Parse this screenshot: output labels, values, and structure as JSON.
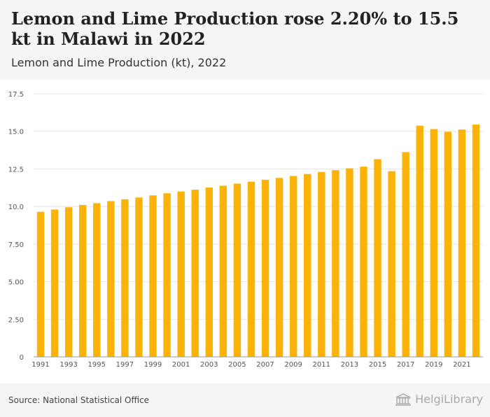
{
  "header": {
    "title": "Lemon and Lime Production rose 2.20% to 15.5 kt in Malawi in 2022",
    "subtitle": "Lemon and Lime Production (kt), 2022"
  },
  "footer": {
    "source": "Source: National Statistical Office",
    "brand": "HelgiLibrary"
  },
  "chart_data": {
    "type": "bar",
    "title": "Lemon and Lime Production (kt), 2022",
    "xlabel": "",
    "ylabel": "",
    "ylim": [
      0,
      17.5
    ],
    "yticks": [
      "0",
      "2.50",
      "5.00",
      "7.50",
      "10.0",
      "12.5",
      "15.0",
      "17.5"
    ],
    "xtick_labels": [
      "1991",
      "1993",
      "1995",
      "1997",
      "1999",
      "2001",
      "2003",
      "2005",
      "2007",
      "2009",
      "2011",
      "2013",
      "2015",
      "2017",
      "2019",
      "2021"
    ],
    "categories": [
      "1991",
      "1992",
      "1993",
      "1994",
      "1995",
      "1996",
      "1997",
      "1998",
      "1999",
      "2000",
      "2001",
      "2002",
      "2003",
      "2004",
      "2005",
      "2006",
      "2007",
      "2008",
      "2009",
      "2010",
      "2011",
      "2012",
      "2013",
      "2014",
      "2015",
      "2016",
      "2017",
      "2018",
      "2019",
      "2020",
      "2021",
      "2022"
    ],
    "values": [
      9.65,
      9.8,
      9.95,
      10.1,
      10.22,
      10.36,
      10.48,
      10.6,
      10.74,
      10.88,
      11.0,
      11.12,
      11.26,
      11.38,
      11.52,
      11.65,
      11.78,
      11.9,
      12.03,
      12.16,
      12.3,
      12.42,
      12.54,
      12.65,
      13.15,
      12.35,
      13.62,
      15.38,
      15.15,
      14.97,
      15.12,
      15.45
    ],
    "bar_color": "#fbb30a",
    "grid": true
  }
}
